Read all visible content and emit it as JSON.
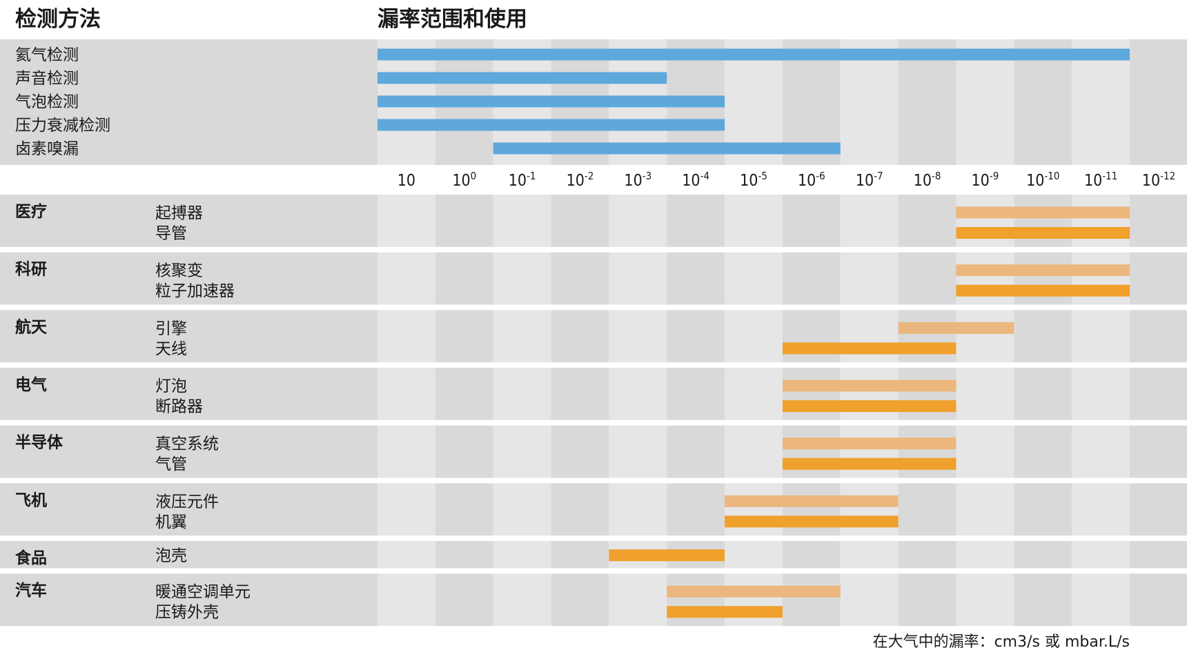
{
  "headers": {
    "method": "检测方法",
    "range": "漏率范围和使用"
  },
  "footer": "在大气中的漏率：cm3/s 或 mbar.L/s",
  "chart_data": {
    "type": "bar",
    "orientation": "horizontal-range",
    "x_scale": "log-reversed",
    "x_ticks": [
      {
        "base": "10",
        "exp": ""
      },
      {
        "base": "10",
        "exp": "0"
      },
      {
        "base": "10",
        "exp": "-1"
      },
      {
        "base": "10",
        "exp": "-2"
      },
      {
        "base": "10",
        "exp": "-3"
      },
      {
        "base": "10",
        "exp": "-4"
      },
      {
        "base": "10",
        "exp": "-5"
      },
      {
        "base": "10",
        "exp": "-6"
      },
      {
        "base": "10",
        "exp": "-7"
      },
      {
        "base": "10",
        "exp": "-8"
      },
      {
        "base": "10",
        "exp": "-9"
      },
      {
        "base": "10",
        "exp": "-10"
      },
      {
        "base": "10",
        "exp": "-11"
      },
      {
        "base": "10",
        "exp": "-12"
      }
    ],
    "methods": [
      {
        "name": "氦气检测",
        "from": 1,
        "to": -12
      },
      {
        "name": "声音检测",
        "from": 1,
        "to": -4
      },
      {
        "name": "气泡检测",
        "from": 1,
        "to": -5
      },
      {
        "name": "压力衰减检测",
        "from": 1,
        "to": -5
      },
      {
        "name": "卤素嗅漏",
        "from": -1,
        "to": -7
      }
    ],
    "applications": [
      {
        "category": "医疗",
        "items": [
          {
            "name": "起搏器",
            "from": -9,
            "to": -12,
            "style": "light"
          },
          {
            "name": "导管",
            "from": -9,
            "to": -12,
            "style": "dark"
          }
        ]
      },
      {
        "category": "科研",
        "items": [
          {
            "name": "核聚变",
            "from": -9,
            "to": -12,
            "style": "light"
          },
          {
            "name": "粒子加速器",
            "from": -9,
            "to": -12,
            "style": "dark"
          }
        ]
      },
      {
        "category": "航天",
        "items": [
          {
            "name": "引擎",
            "from": -8,
            "to": -10,
            "style": "light"
          },
          {
            "name": "天线",
            "from": -6,
            "to": -9,
            "style": "dark"
          }
        ]
      },
      {
        "category": "电气",
        "items": [
          {
            "name": "灯泡",
            "from": -6,
            "to": -9,
            "style": "light"
          },
          {
            "name": "断路器",
            "from": -6,
            "to": -9,
            "style": "dark"
          }
        ]
      },
      {
        "category": "半导体",
        "items": [
          {
            "name": "真空系统",
            "from": -6,
            "to": -9,
            "style": "light"
          },
          {
            "name": "气管",
            "from": -6,
            "to": -9,
            "style": "dark"
          }
        ]
      },
      {
        "category": "飞机",
        "items": [
          {
            "name": "液压元件",
            "from": -5,
            "to": -8,
            "style": "light"
          },
          {
            "name": "机翼",
            "from": -5,
            "to": -8,
            "style": "dark"
          }
        ]
      },
      {
        "category": "食品",
        "items": [
          {
            "name": "泡壳",
            "from": -3,
            "to": -5,
            "style": "dark"
          }
        ]
      },
      {
        "category": "汽车",
        "items": [
          {
            "name": "暖通空调单元",
            "from": -4,
            "to": -7,
            "style": "light"
          },
          {
            "name": "压铸外壳",
            "from": -4,
            "to": -6,
            "style": "dark"
          }
        ]
      }
    ],
    "colors": {
      "method_bar": "#5ea8dc",
      "app_bar_light": "#ebb77d",
      "app_bar_dark": "#f0a02c",
      "column_light": "#e6e6e6",
      "column_dark": "#d9d9d9",
      "label_panel": "#d9d9d9"
    }
  }
}
